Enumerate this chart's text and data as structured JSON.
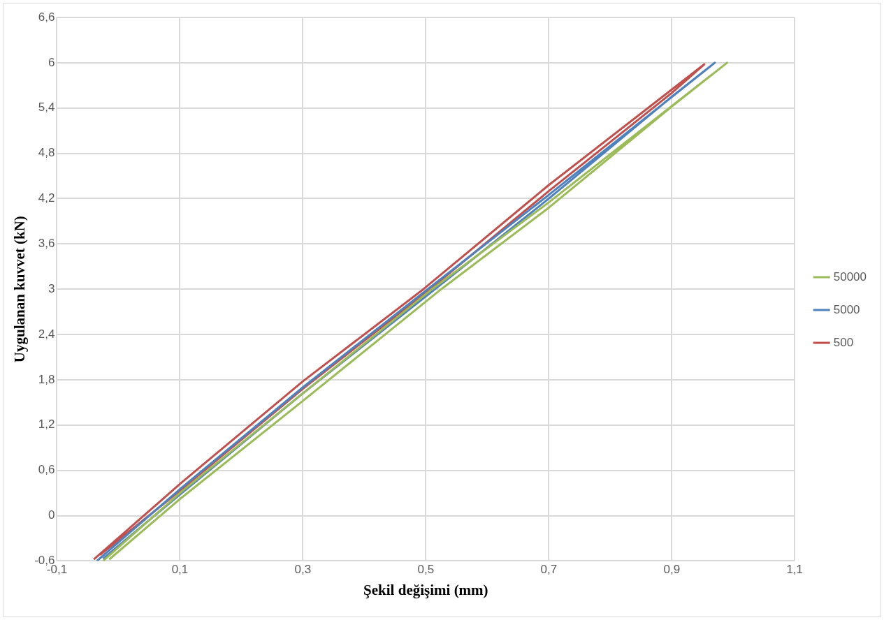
{
  "chart_data": {
    "type": "line",
    "xlabel": "Şekil değişimi (mm)",
    "ylabel": "Uygulanan kuvvet (kN)",
    "xlim": [
      -0.1,
      1.1
    ],
    "xticks": [
      {
        "value": -0.1,
        "label": "-0,1"
      },
      {
        "value": 0.1,
        "label": "0,1"
      },
      {
        "value": 0.3,
        "label": "0,3"
      },
      {
        "value": 0.5,
        "label": "0,5"
      },
      {
        "value": 0.7,
        "label": "0,7"
      },
      {
        "value": 0.9,
        "label": "0,9"
      },
      {
        "value": 1.1,
        "label": "1,1"
      }
    ],
    "ylim": [
      -0.6,
      6.6
    ],
    "yticks": [
      {
        "value": -0.6,
        "label": "-0,6"
      },
      0,
      {
        "value": 0.6,
        "label": "0,6"
      },
      {
        "value": 1.2,
        "label": "1,2"
      },
      {
        "value": 1.8,
        "label": "1,8"
      },
      {
        "value": 2.4,
        "label": "2,4"
      },
      3,
      {
        "value": 3.6,
        "label": "3,6"
      },
      {
        "value": 4.2,
        "label": "4,2"
      },
      {
        "value": 4.8,
        "label": "4,8"
      },
      {
        "value": 5.4,
        "label": "5,4"
      },
      6,
      {
        "value": 6.6,
        "label": "6,6"
      }
    ],
    "grid": true,
    "legend": "right",
    "marker": "none",
    "line_style": "solid",
    "series": [
      {
        "name": "50000",
        "color": "#9bbb59",
        "x": [
          -0.025,
          0.1,
          0.3,
          0.51,
          0.7,
          0.99,
          0.9,
          0.7,
          0.525,
          0.3,
          0.1,
          -0.015
        ],
        "values": [
          -0.6,
          0.3,
          1.62,
          3.0,
          4.15,
          6.0,
          5.42,
          4.08,
          3.0,
          1.52,
          0.22,
          -0.58
        ]
      },
      {
        "name": "5000",
        "color": "#4f81bd",
        "x": [
          -0.035,
          0.1,
          0.3,
          0.503,
          0.7,
          0.97,
          0.9,
          0.7,
          0.515,
          0.3,
          0.1,
          -0.025
        ],
        "values": [
          -0.6,
          0.35,
          1.7,
          3.0,
          4.25,
          6.0,
          5.55,
          4.2,
          3.0,
          1.62,
          0.28,
          -0.57
        ]
      },
      {
        "name": "500",
        "color": "#c0504d",
        "x": [
          -0.04,
          0.1,
          0.3,
          0.496,
          0.7,
          0.953,
          0.9,
          0.7,
          0.507,
          0.3,
          0.1,
          -0.03
        ],
        "values": [
          -0.58,
          0.42,
          1.78,
          3.0,
          4.38,
          5.98,
          5.6,
          4.3,
          3.0,
          1.68,
          0.33,
          -0.52
        ]
      }
    ]
  }
}
